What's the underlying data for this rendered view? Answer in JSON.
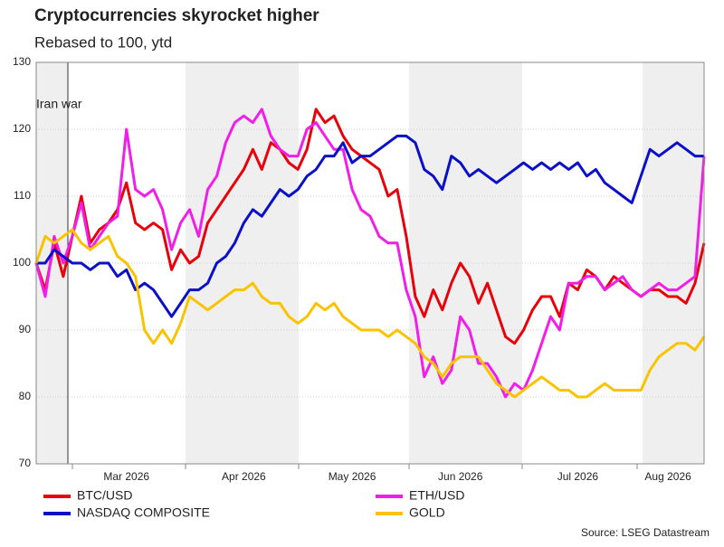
{
  "chart_data": {
    "type": "line",
    "title": "Cryptocurrencies skyrocket higher",
    "subtitle": "Rebased to 100, ytd",
    "annotation": "Iran war",
    "source": "Source: LSEG Datastream",
    "categories": [
      null,
      null,
      null,
      null,
      null,
      null,
      null,
      null,
      null,
      null,
      "Mar 2026",
      null,
      null,
      null,
      null,
      null,
      null,
      null,
      null,
      null,
      null,
      null,
      null,
      "Apr 2026",
      null,
      null,
      null,
      null,
      null,
      null,
      null,
      null,
      null,
      null,
      null,
      "May 2026",
      null,
      null,
      null,
      null,
      null,
      null,
      null,
      null,
      null,
      null,
      null,
      "Jun 2026",
      null,
      null,
      null,
      null,
      null,
      null,
      null,
      null,
      null,
      null,
      null,
      null,
      "Jul 2026",
      null,
      null,
      null,
      null,
      null,
      null,
      null,
      null,
      null,
      "Aug 2026",
      null,
      null,
      null,
      null
    ],
    "ylim": [
      70,
      130
    ],
    "yticks": [
      70,
      80,
      90,
      100,
      110,
      120,
      130
    ],
    "grid": true,
    "series": [
      {
        "name": "BTC/USD",
        "color": "#e8000b",
        "values": [
          100,
          96,
          103,
          98,
          104,
          110,
          103,
          105,
          106,
          108,
          112,
          106,
          105,
          106,
          105,
          99,
          102,
          100,
          101,
          106,
          108,
          110,
          112,
          114,
          117,
          114,
          118,
          117,
          115,
          114,
          117,
          123,
          121,
          122,
          119,
          117,
          116,
          115,
          114,
          110,
          111,
          104,
          95,
          92,
          96,
          93,
          97,
          100,
          98,
          94,
          97,
          93,
          89,
          88,
          90,
          93,
          95,
          95,
          92,
          97,
          96,
          99,
          98,
          96,
          98,
          97,
          96,
          95,
          96,
          96,
          95,
          95,
          94,
          97,
          103
        ]
      },
      {
        "name": "ETH/USD",
        "color": "#f01ee8",
        "values": [
          100,
          95,
          104,
          100,
          104,
          109,
          102,
          104,
          106,
          107,
          120,
          111,
          110,
          111,
          108,
          102,
          106,
          108,
          104,
          111,
          113,
          118,
          121,
          122,
          121,
          123,
          119,
          117,
          116,
          116,
          120,
          121,
          119,
          117,
          117,
          111,
          108,
          107,
          104,
          103,
          103,
          96,
          92,
          83,
          86,
          82,
          84,
          92,
          90,
          85,
          85,
          83,
          80,
          82,
          81,
          84,
          88,
          92,
          90,
          97,
          97,
          98,
          98,
          96,
          97,
          98,
          96,
          95,
          96,
          97,
          96,
          96,
          97,
          98,
          116
        ]
      },
      {
        "name": "NASDAQ COMPOSITE",
        "color": "#0a10c8",
        "values": [
          100,
          100,
          102,
          101,
          100,
          100,
          99,
          100,
          100,
          98,
          99,
          96,
          97,
          96,
          94,
          92,
          94,
          96,
          96,
          97,
          100,
          101,
          103,
          106,
          108,
          107,
          109,
          111,
          110,
          111,
          113,
          114,
          116,
          116,
          118,
          115,
          116,
          116,
          117,
          118,
          119,
          119,
          118,
          114,
          113,
          111,
          116,
          115,
          113,
          114,
          113,
          112,
          113,
          114,
          115,
          114,
          115,
          114,
          115,
          114,
          115,
          113,
          114,
          112,
          111,
          110,
          109,
          113,
          117,
          116,
          117,
          118,
          117,
          116,
          116
        ]
      },
      {
        "name": "GOLD",
        "color": "#fac300",
        "values": [
          100,
          104,
          103,
          104,
          105,
          103,
          102,
          103,
          104,
          101,
          100,
          98,
          90,
          88,
          90,
          88,
          91,
          95,
          94,
          93,
          94,
          95,
          96,
          96,
          97,
          95,
          94,
          94,
          92,
          91,
          92,
          94,
          93,
          94,
          92,
          91,
          90,
          90,
          90,
          89,
          90,
          89,
          88,
          86,
          85,
          83,
          85,
          86,
          86,
          86,
          84,
          82,
          81,
          80,
          81,
          82,
          83,
          82,
          81,
          81,
          80,
          80,
          81,
          82,
          81,
          81,
          81,
          81,
          84,
          86,
          87,
          88,
          88,
          87,
          89
        ]
      }
    ]
  }
}
